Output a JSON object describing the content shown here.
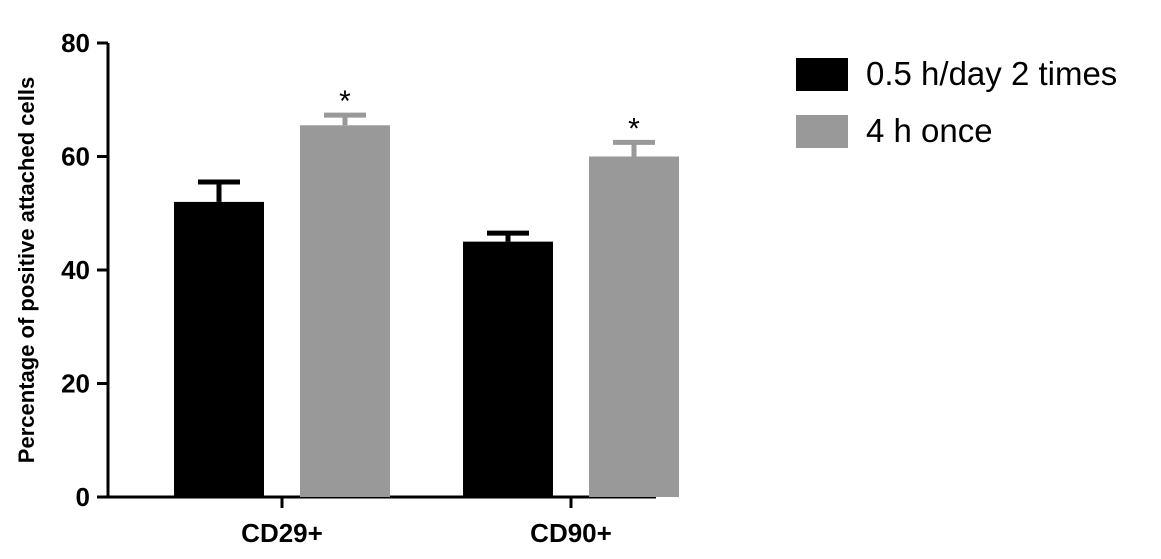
{
  "chart_data": {
    "type": "bar",
    "title": "",
    "xlabel": "",
    "ylabel": "Percentage of positive attached cells",
    "ylim": [
      0,
      80
    ],
    "yticks": [
      0,
      20,
      40,
      60,
      80
    ],
    "categories": [
      "CD29+",
      "CD90+"
    ],
    "series": [
      {
        "name": "0.5 h/day 2 times",
        "values": [
          52,
          45
        ],
        "errors": [
          3.5,
          1.5
        ],
        "color": "#000000",
        "significance": [
          "",
          ""
        ]
      },
      {
        "name": "4 h once",
        "values": [
          65.5,
          60
        ],
        "errors": [
          1.8,
          2.5
        ],
        "color": "#999999",
        "significance": [
          "*",
          "*"
        ]
      }
    ],
    "legend_position": "top-right",
    "grid": false
  }
}
